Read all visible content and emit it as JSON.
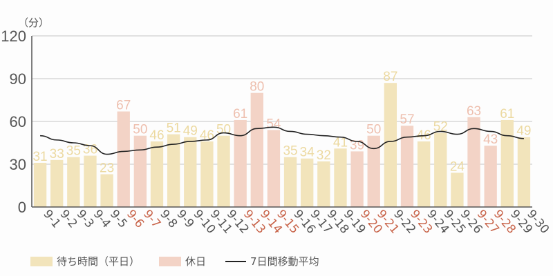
{
  "chart_data": {
    "type": "bar",
    "ylabel": "（分）",
    "ylim": [
      0,
      120
    ],
    "yticks": [
      0,
      30,
      60,
      90,
      120
    ],
    "grid": true,
    "categories": [
      "9-1",
      "9-2",
      "9-3",
      "9-4",
      "9-5",
      "9-6",
      "9-7",
      "9-8",
      "9-9",
      "9-10",
      "9-11",
      "9-12",
      "9-13",
      "9-14",
      "9-15",
      "9-16",
      "9-17",
      "9-18",
      "9-19",
      "9-20",
      "9-21",
      "9-22",
      "9-23",
      "9-24",
      "9-25",
      "9-26",
      "9-27",
      "9-28",
      "9-29",
      "9-30"
    ],
    "holidays": [
      "9-6",
      "9-7",
      "9-13",
      "9-14",
      "9-15",
      "9-20",
      "9-21",
      "9-23",
      "9-27",
      "9-28"
    ],
    "series": [
      {
        "name": "待ち時間（平日）/休日",
        "type": "bar",
        "values": [
          31,
          33,
          35,
          36,
          23,
          67,
          50,
          46,
          51,
          49,
          46,
          50,
          61,
          80,
          54,
          35,
          34,
          32,
          41,
          39,
          50,
          87,
          57,
          46,
          52,
          24,
          63,
          43,
          61,
          49
        ]
      },
      {
        "name": "7日間移動平均",
        "type": "line",
        "values": [
          50,
          47,
          45,
          43,
          37,
          39,
          40,
          42,
          44,
          46,
          47,
          52,
          50,
          55,
          56,
          53,
          51,
          50,
          49,
          46,
          41,
          46,
          49,
          50,
          53,
          51,
          55,
          53,
          50,
          48
        ]
      }
    ],
    "legend": [
      {
        "label": "待ち時間（平日）",
        "color": "#f2e4bb"
      },
      {
        "label": "休日",
        "color": "#f3d3c6"
      },
      {
        "label": "7日間移動平均",
        "color": "#222222"
      }
    ],
    "legend_position": "bottom-left"
  },
  "colors": {
    "weekday_bar": "#f2e4bb",
    "holiday_bar": "#f3d3c6",
    "weekday_label": "#ecd9a0",
    "holiday_label": "#eebfae",
    "weekday_tick": "#555555",
    "holiday_tick": "#c8644a",
    "grid": "#d8d8d8",
    "axis": "#555555",
    "line": "#222222"
  }
}
